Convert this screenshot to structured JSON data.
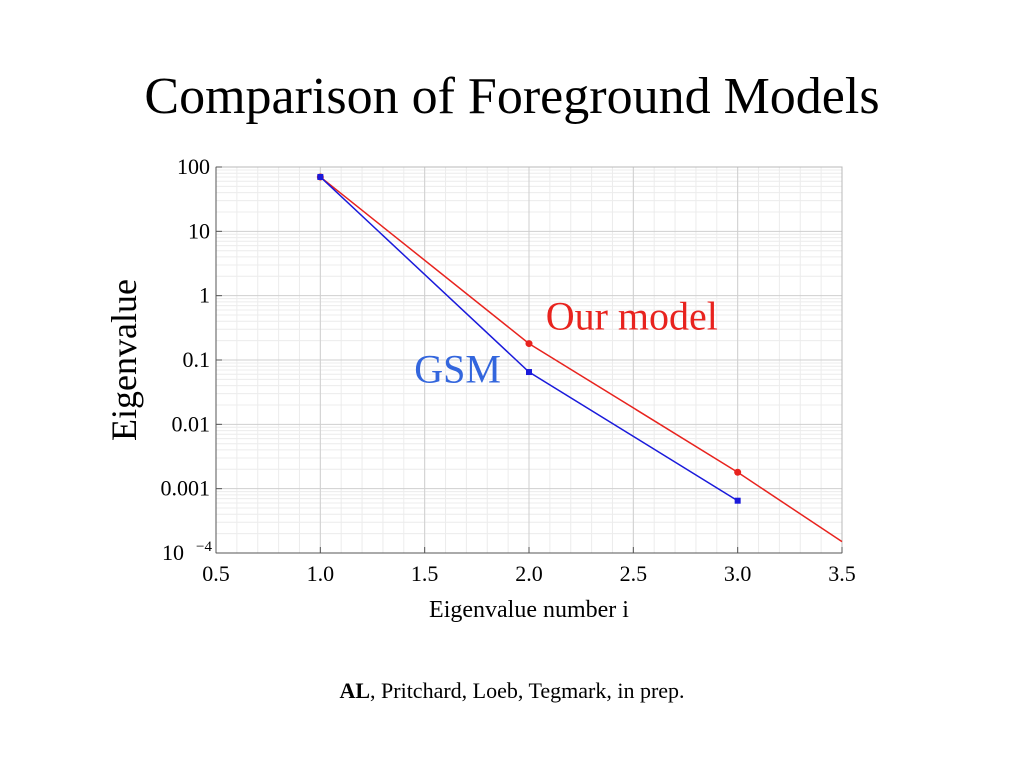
{
  "slide": {
    "title": "Comparison of Foreground Models",
    "citation_bold": "AL",
    "citation_rest": ", Pritchard, Loeb, Tegmark, in prep."
  },
  "chart_data": {
    "type": "line",
    "xlabel": "Eigenvalue number i",
    "ylabel": "Eigenvalue",
    "xlim": [
      0.5,
      3.5
    ],
    "ylim": [
      0.0001,
      100
    ],
    "y_scale": "log",
    "grid": true,
    "x_ticks": [
      "0.5",
      "1.0",
      "1.5",
      "2.0",
      "2.5",
      "3.0",
      "3.5"
    ],
    "y_ticks": [
      {
        "value": 100,
        "label": "100"
      },
      {
        "value": 10,
        "label": "10"
      },
      {
        "value": 1,
        "label": "1"
      },
      {
        "value": 0.1,
        "label": "0.1"
      },
      {
        "value": 0.01,
        "label": "0.01"
      },
      {
        "value": 0.001,
        "label": "0.001"
      },
      {
        "value": 0.0001,
        "label": "10",
        "sup": "−4"
      }
    ],
    "series": [
      {
        "name": "Our model",
        "color": "#e8231e",
        "marker": "circle",
        "x": [
          1.0,
          2.0,
          3.0
        ],
        "y": [
          70,
          0.18,
          0.0018
        ],
        "extension": {
          "x": [
            3.0,
            3.5
          ],
          "y": [
            0.0018,
            0.00015
          ]
        }
      },
      {
        "name": "GSM",
        "color": "#1a1adb",
        "marker": "square",
        "x": [
          1.0,
          2.0,
          3.0
        ],
        "y": [
          70,
          0.065,
          0.00065
        ]
      }
    ],
    "annotations": [
      {
        "text": "Our model",
        "color": "#e8231e",
        "x": 2.08,
        "y": 0.3
      },
      {
        "text": "GSM",
        "color": "#3366dd",
        "x": 1.45,
        "y": 0.045
      }
    ]
  }
}
